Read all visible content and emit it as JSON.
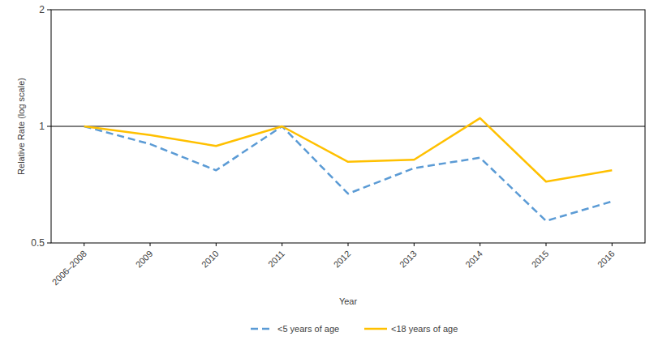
{
  "chart_data": {
    "type": "line",
    "x_label": "Year",
    "y_label": "Relative Rate (log scale)",
    "categories": [
      "2006–2008",
      "2009",
      "2010",
      "2011",
      "2012",
      "2013",
      "2014",
      "2015",
      "2016"
    ],
    "series": [
      {
        "name": "<5 years of age",
        "color": "#5b9bd5",
        "line_style": "dashed",
        "values": [
          1.0,
          0.9,
          0.77,
          1.0,
          0.67,
          0.78,
          0.83,
          0.57,
          0.64
        ]
      },
      {
        "name": "<18 years of age",
        "color": "#ffc000",
        "line_style": "solid",
        "values": [
          1.0,
          0.95,
          0.89,
          1.0,
          0.81,
          0.82,
          1.05,
          0.72,
          0.77
        ]
      }
    ],
    "ylim": [
      0.5,
      2
    ],
    "yticks": [
      0.5,
      1,
      2
    ],
    "log": "y",
    "reference_line": 1,
    "grid": false,
    "legend": "bottom"
  }
}
